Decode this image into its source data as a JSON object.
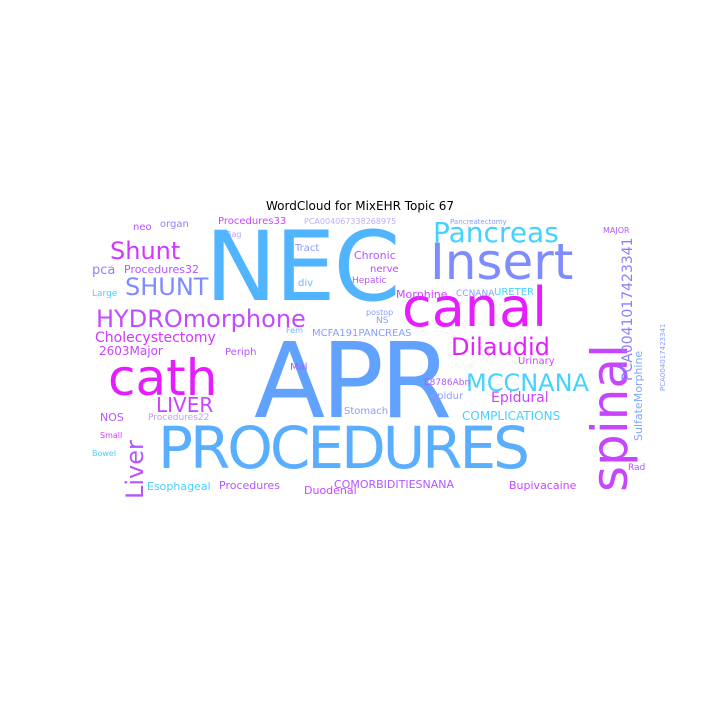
{
  "title": "WordCloud for MixEHR Topic 67",
  "colors": {
    "blue": "#61A2FF",
    "cyan": "#46D2FF",
    "magenta": "#E61EFF",
    "violet": "#B455FF",
    "lilac": "#9B7BFF"
  },
  "words": [
    {
      "text": "NEC",
      "color": "#50B4FF"
    },
    {
      "text": "APR",
      "color": "#61A2FF"
    },
    {
      "text": "PROCEDURES",
      "color": "#5AAEFF"
    },
    {
      "text": "Insert",
      "color": "#7E8CFF"
    },
    {
      "text": "canal",
      "color": "#E61EFF"
    },
    {
      "text": "spinal",
      "color": "#C845FF"
    },
    {
      "text": "cath",
      "color": "#E61EFF"
    },
    {
      "text": "Pancreas",
      "color": "#46D2FF"
    },
    {
      "text": "Shunt",
      "color": "#D336FF"
    },
    {
      "text": "SHUNT",
      "color": "#7E8CFF"
    },
    {
      "text": "HYDROmorphone",
      "color": "#C14BFF"
    },
    {
      "text": "Dilaudid",
      "color": "#E61EFF"
    },
    {
      "text": "MCCNANA",
      "color": "#46D2FF"
    },
    {
      "text": "LIVER",
      "color": "#C845FF"
    },
    {
      "text": "Liver",
      "color": "#B455FF"
    },
    {
      "text": "Cholecystectomy",
      "color": "#D336FF"
    },
    {
      "text": "2603Major",
      "color": "#C845FF"
    },
    {
      "text": "pca",
      "color": "#9B7BFF"
    },
    {
      "text": "Procedures32",
      "color": "#B455FF"
    },
    {
      "text": "neo",
      "color": "#B455FF"
    },
    {
      "text": "organ",
      "color": "#8A80FF"
    },
    {
      "text": "Procedures33",
      "color": "#C845FF"
    },
    {
      "text": "PCA004067338268975",
      "color": "#B9B0FF"
    },
    {
      "text": "Tract",
      "color": "#8A9CFF"
    },
    {
      "text": "Bag",
      "color": "#C09CFF"
    },
    {
      "text": "Chronic",
      "color": "#B455FF"
    },
    {
      "text": "nerve",
      "color": "#C845FF"
    },
    {
      "text": "Hepatic",
      "color": "#B455FF"
    },
    {
      "text": "div",
      "color": "#6FB6FF"
    },
    {
      "text": "Morphine",
      "color": "#C845FF"
    },
    {
      "text": "CCNANA",
      "color": "#8A9CFF"
    },
    {
      "text": "URETER",
      "color": "#46D2FF"
    },
    {
      "text": "PCA0041017423341",
      "color": "#8A80FF"
    },
    {
      "text": "SulfateMorphine",
      "color": "#7EA8FF"
    },
    {
      "text": "Large",
      "color": "#46D2FF"
    },
    {
      "text": "NOS",
      "color": "#B455FF"
    },
    {
      "text": "Periph",
      "color": "#B455FF"
    },
    {
      "text": "Mal",
      "color": "#B455FF"
    },
    {
      "text": "MCFA191PANCREAS",
      "color": "#8A9CFF"
    },
    {
      "text": "Epidural",
      "color": "#C845FF"
    },
    {
      "text": "epidur",
      "color": "#8A9CFF"
    },
    {
      "text": "E8786Abn",
      "color": "#B455FF"
    },
    {
      "text": "Urinary",
      "color": "#C845FF"
    },
    {
      "text": "Stomach",
      "color": "#8A9CFF"
    },
    {
      "text": "COMPLICATIONS",
      "color": "#46D2FF"
    },
    {
      "text": "Procedures22",
      "color": "#C09CFF"
    },
    {
      "text": "Small",
      "color": "#D336FF"
    },
    {
      "text": "Bowel",
      "color": "#46D2FF"
    },
    {
      "text": "Esophageal",
      "color": "#46D2FF"
    },
    {
      "text": "Procedures",
      "color": "#B455FF"
    },
    {
      "text": "Duodenal",
      "color": "#C845FF"
    },
    {
      "text": "COMORBIDITIESNANA",
      "color": "#B455FF"
    },
    {
      "text": "Bupivacaine",
      "color": "#C845FF"
    },
    {
      "text": "Rad",
      "color": "#B455FF"
    },
    {
      "text": "MAJOR",
      "color": "#B455FF"
    },
    {
      "text": "postop",
      "color": "#8A9CFF"
    },
    {
      "text": "NS",
      "color": "#8A9CFF"
    },
    {
      "text": "Fem",
      "color": "#6FB6FF"
    },
    {
      "text": "Pancreatectomy",
      "color": "#8A9CFF"
    },
    {
      "text": "PCA004017423341",
      "color": "#8A9CFF"
    }
  ]
}
